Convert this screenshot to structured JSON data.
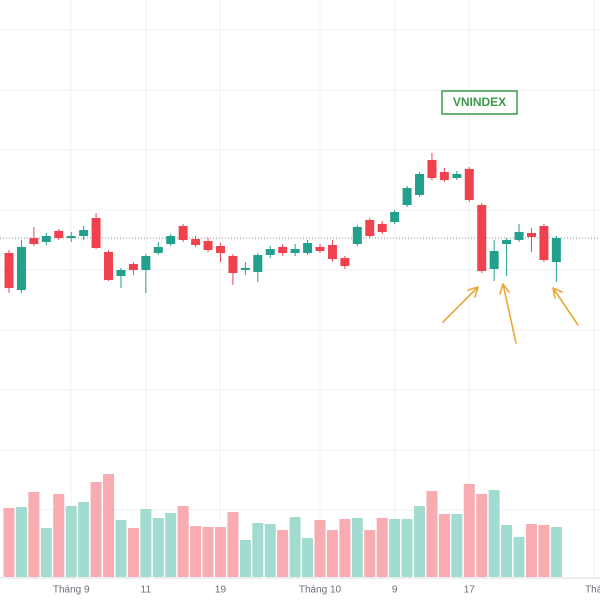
{
  "chart_data": {
    "type": "candlestick",
    "label": "VNINDEX",
    "categories": [
      null,
      null,
      null,
      null,
      null,
      "Tháng 9",
      null,
      null,
      null,
      null,
      null,
      "11",
      null,
      null,
      null,
      null,
      null,
      "19",
      null,
      null,
      null,
      null,
      null,
      null,
      null,
      "Tháng 10",
      null,
      null,
      null,
      null,
      null,
      "9",
      null,
      null,
      null,
      null,
      null,
      "17",
      null,
      null,
      null,
      null,
      null,
      null,
      null,
      null,
      null,
      "Thá"
    ],
    "open": [
      347,
      310,
      362,
      358,
      369,
      362,
      364,
      382,
      348,
      324,
      336,
      330,
      347,
      356,
      374,
      361,
      359,
      354,
      344,
      330,
      328,
      345,
      353,
      347,
      347,
      353,
      355,
      342,
      356,
      380,
      376,
      378,
      395,
      405,
      440,
      428,
      422,
      431,
      395,
      331,
      356,
      360,
      367,
      374,
      338,
      null,
      null,
      null
    ],
    "high": [
      350,
      360,
      373,
      367,
      371,
      368,
      374,
      387,
      350,
      332,
      338,
      346,
      358,
      366,
      376,
      364,
      362,
      357,
      346,
      338,
      347,
      354,
      356,
      356,
      360,
      356,
      360,
      344,
      375,
      382,
      379,
      390,
      414,
      428,
      447,
      432,
      429,
      433,
      397,
      360,
      362,
      376,
      372,
      376,
      364,
      null,
      null,
      null
    ],
    "low": [
      307,
      307,
      354,
      355,
      360,
      358,
      360,
      351,
      319,
      312,
      325,
      307,
      345,
      354,
      358,
      353,
      348,
      338,
      315,
      325,
      318,
      342,
      344,
      344,
      345,
      347,
      338,
      331,
      354,
      362,
      366,
      376,
      393,
      403,
      420,
      418,
      420,
      398,
      327,
      319,
      324,
      358,
      348,
      338,
      318,
      null,
      null,
      null
    ],
    "close": [
      312,
      353,
      356,
      364,
      362,
      364,
      370,
      352,
      320,
      330,
      330,
      344,
      353,
      364,
      360,
      355,
      350,
      347,
      327,
      332,
      345,
      351,
      347,
      351,
      357,
      349,
      341,
      334,
      373,
      364,
      368,
      388,
      412,
      426,
      422,
      420,
      426,
      400,
      329,
      349,
      360,
      368,
      363,
      340,
      362,
      null,
      null,
      null
    ],
    "volume": [
      69,
      70,
      85,
      49,
      83,
      71,
      75,
      95,
      103,
      57,
      49,
      68,
      59,
      64,
      71,
      51,
      50,
      50,
      65,
      37,
      54,
      53,
      47,
      60,
      39,
      57,
      47,
      58,
      59,
      47,
      59,
      58,
      58,
      71,
      86,
      63,
      63,
      93,
      83,
      87,
      52,
      40,
      53,
      52,
      50,
      null,
      null,
      null
    ],
    "reference_level": 362,
    "ylim": [
      0,
      600
    ],
    "up_color": "#22a08c",
    "down_color": "#f0424e",
    "volume_up_color": "#a2dbd0",
    "volume_down_color": "#f8abb0",
    "label_color": "#3a9a48"
  }
}
